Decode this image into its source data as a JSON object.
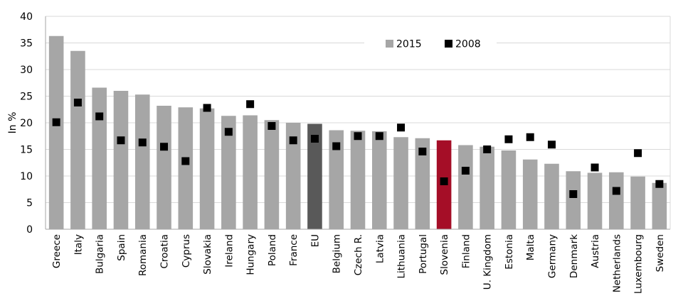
{
  "chart_data": {
    "type": "bar",
    "title": "",
    "xlabel": "",
    "ylabel": "In %",
    "ylim": [
      0,
      40
    ],
    "yticks": [
      0,
      5,
      10,
      15,
      20,
      25,
      30,
      35,
      40
    ],
    "grid": true,
    "legend_position": "top-right",
    "categories": [
      "Greece",
      "Italy",
      "Bulgaria",
      "Spain",
      "Romania",
      "Croatia",
      "Cyprus",
      "Slovakia",
      "Ireland",
      "Hungary",
      "Poland",
      "France",
      "EU",
      "Belgium",
      "Czech R.",
      "Latvia",
      "Lithuania",
      "Portugal",
      "Slovenia",
      "Finland",
      "U. Kingdom",
      "Estonia",
      "Malta",
      "Germany",
      "Denmark",
      "Austria",
      "Netherlands",
      "Luxembourg",
      "Sweden"
    ],
    "series": [
      {
        "name": "2015",
        "kind": "bar",
        "color": "#a6a6a6",
        "values": [
          36.3,
          33.5,
          26.6,
          26.0,
          25.3,
          23.2,
          22.9,
          22.7,
          21.3,
          21.4,
          20.5,
          20.0,
          19.8,
          18.6,
          18.5,
          18.4,
          17.3,
          17.1,
          16.7,
          15.8,
          15.5,
          14.8,
          13.1,
          12.3,
          10.9,
          10.6,
          10.7,
          9.9,
          8.7
        ],
        "highlights": {
          "EU": "#595959",
          "Slovenia": "#a50e27"
        }
      },
      {
        "name": "2008",
        "kind": "marker",
        "color": "#000000",
        "values": [
          20.1,
          23.8,
          21.2,
          16.7,
          16.3,
          15.5,
          12.8,
          22.8,
          18.3,
          23.5,
          19.4,
          16.7,
          17.0,
          15.6,
          17.5,
          17.5,
          19.1,
          14.6,
          9.0,
          11.0,
          15.0,
          16.9,
          17.3,
          15.9,
          6.6,
          11.6,
          7.2,
          14.3,
          8.5
        ]
      }
    ]
  }
}
